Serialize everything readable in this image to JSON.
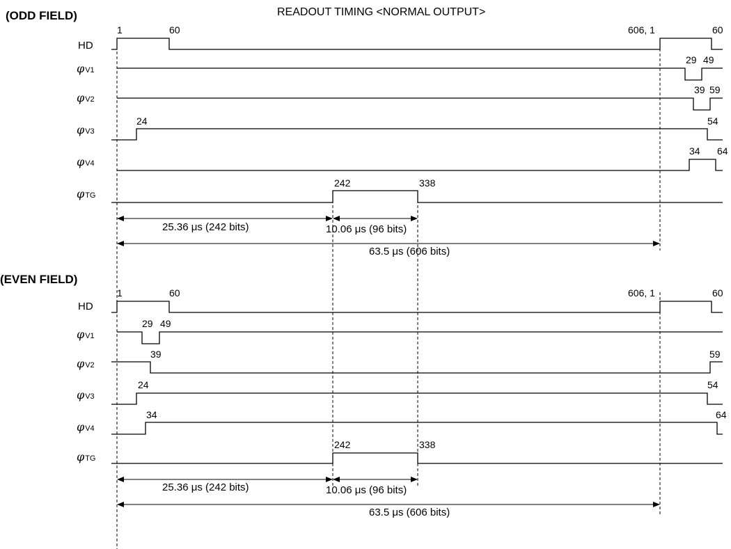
{
  "title": "READOUT TIMING <NORMAL OUTPUT>",
  "fields": [
    {
      "label": "(ODD FIELD)",
      "signals": [
        {
          "name": "HD",
          "prefix": "",
          "sub": "",
          "ticks": [
            "1",
            "60",
            "606, 1",
            "60"
          ]
        },
        {
          "name": "V1",
          "prefix": "φ",
          "sub": "V1",
          "ticks": [
            "29",
            "49"
          ]
        },
        {
          "name": "V2",
          "prefix": "φ",
          "sub": "V2",
          "ticks": [
            "39",
            "59"
          ]
        },
        {
          "name": "V3",
          "prefix": "φ",
          "sub": "V3",
          "ticks": [
            "24",
            "54"
          ]
        },
        {
          "name": "V4",
          "prefix": "φ",
          "sub": "V4",
          "ticks": [
            "34",
            "64"
          ]
        },
        {
          "name": "TG",
          "prefix": "φ",
          "sub": "TG",
          "ticks": [
            "242",
            "338"
          ]
        }
      ],
      "measures": [
        "25.36 μs (242 bits)",
        "10.06 μs (96 bits)",
        "63.5 μs (606 bits)"
      ]
    },
    {
      "label": "(EVEN FIELD)",
      "signals": [
        {
          "name": "HD",
          "prefix": "",
          "sub": "",
          "ticks": [
            "1",
            "60",
            "606, 1",
            "60"
          ]
        },
        {
          "name": "V1",
          "prefix": "φ",
          "sub": "V1",
          "ticks": [
            "29",
            "49"
          ]
        },
        {
          "name": "V2",
          "prefix": "φ",
          "sub": "V2",
          "ticks": [
            "39",
            "59"
          ]
        },
        {
          "name": "V3",
          "prefix": "φ",
          "sub": "V3",
          "ticks": [
            "24",
            "54"
          ]
        },
        {
          "name": "V4",
          "prefix": "φ",
          "sub": "V4",
          "ticks": [
            "34",
            "64"
          ]
        },
        {
          "name": "TG",
          "prefix": "φ",
          "sub": "TG",
          "ticks": [
            "242",
            "338"
          ]
        }
      ],
      "measures": [
        "25.36 μs (242 bits)",
        "10.06 μs (96 bits)",
        "63.5 μs (606 bits)"
      ]
    }
  ]
}
